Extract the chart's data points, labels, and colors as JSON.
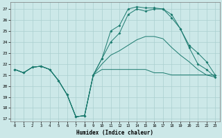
{
  "xlabel": "Humidex (Indice chaleur)",
  "bg_color": "#cce8e8",
  "grid_color": "#aacfcf",
  "line_color": "#1a7a6e",
  "xlim": [
    -0.5,
    23.5
  ],
  "ylim": [
    16.8,
    27.6
  ],
  "yticks": [
    17,
    18,
    19,
    20,
    21,
    22,
    23,
    24,
    25,
    26,
    27
  ],
  "xticks": [
    0,
    1,
    2,
    3,
    4,
    5,
    6,
    7,
    8,
    9,
    10,
    11,
    12,
    13,
    14,
    15,
    16,
    17,
    18,
    19,
    20,
    21,
    22,
    23
  ],
  "series": [
    {
      "x": [
        0,
        1,
        2,
        3,
        4,
        5,
        6,
        7,
        8,
        9,
        10,
        11,
        12,
        13,
        14,
        15,
        16,
        17,
        18,
        19,
        20,
        21,
        22,
        23
      ],
      "y": [
        21.5,
        21.2,
        21.7,
        21.8,
        21.5,
        20.5,
        19.2,
        17.2,
        17.3,
        21.0,
        21.5,
        21.5,
        21.5,
        21.5,
        21.5,
        21.5,
        21.2,
        21.2,
        21.0,
        21.0,
        21.0,
        21.0,
        21.0,
        21.0
      ],
      "marker": false
    },
    {
      "x": [
        0,
        1,
        2,
        3,
        4,
        5,
        6,
        7,
        8,
        9,
        10,
        11,
        12,
        13,
        14,
        15,
        16,
        17,
        18,
        19,
        20,
        21,
        22,
        23
      ],
      "y": [
        21.5,
        21.2,
        21.7,
        21.8,
        21.5,
        20.5,
        19.2,
        17.2,
        17.3,
        21.0,
        22.0,
        22.8,
        23.2,
        23.7,
        24.2,
        24.5,
        24.5,
        24.3,
        23.5,
        22.8,
        22.2,
        21.5,
        21.0,
        20.8
      ],
      "marker": false
    },
    {
      "x": [
        0,
        1,
        2,
        3,
        4,
        5,
        6,
        7,
        8,
        9,
        10,
        11,
        12,
        13,
        14,
        15,
        16,
        17,
        18,
        19,
        20,
        21,
        22,
        23
      ],
      "y": [
        21.5,
        21.2,
        21.7,
        21.8,
        21.5,
        20.5,
        19.2,
        17.2,
        17.3,
        21.0,
        22.5,
        24.0,
        24.8,
        26.5,
        27.0,
        26.8,
        27.0,
        27.0,
        26.2,
        25.2,
        23.7,
        23.0,
        22.2,
        21.0
      ],
      "marker": true
    },
    {
      "x": [
        0,
        1,
        2,
        3,
        4,
        5,
        6,
        7,
        8,
        9,
        10,
        11,
        12,
        13,
        14,
        15,
        16,
        17,
        18,
        19,
        20,
        21,
        22,
        23
      ],
      "y": [
        21.5,
        21.2,
        21.7,
        21.8,
        21.5,
        20.5,
        19.2,
        17.2,
        17.3,
        21.0,
        22.5,
        25.0,
        25.5,
        27.0,
        27.2,
        27.1,
        27.1,
        27.0,
        26.5,
        25.2,
        23.5,
        22.0,
        21.5,
        20.8
      ],
      "marker": true
    }
  ]
}
